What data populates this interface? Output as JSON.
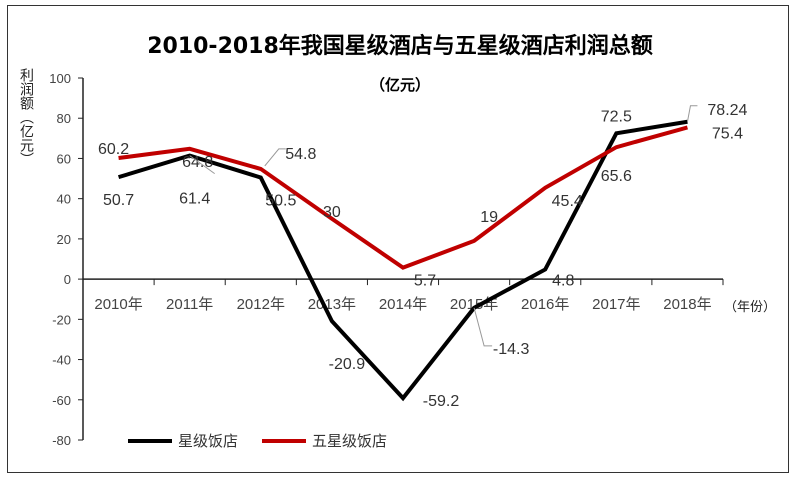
{
  "chart_data": {
    "type": "line",
    "title": "2010-2018年我国星级酒店与五星级酒店利润总额",
    "subtitle": "（亿元）",
    "ylabel": "利润额（亿元）",
    "xlabel": "（年份）",
    "categories": [
      "2010年",
      "2011年",
      "2012年",
      "2013年",
      "2014年",
      "2015年",
      "2016年",
      "2017年",
      "2018年"
    ],
    "ylim": [
      -80,
      100
    ],
    "yticks": [
      100,
      80,
      60,
      40,
      20,
      0,
      -20,
      -40,
      -60,
      -80
    ],
    "grid": false,
    "legend_position": "bottom-left",
    "series": [
      {
        "name": "星级饭店",
        "color": "#000000",
        "values": [
          50.7,
          61.4,
          50.5,
          -20.9,
          -59.2,
          -14.3,
          4.8,
          72.5,
          78.24
        ],
        "labels": [
          "50.7",
          "61.4",
          "50.5",
          "-20.9",
          "-59.2",
          "-14.3",
          "4.8",
          "72.5",
          "78.24"
        ]
      },
      {
        "name": "五星级饭店",
        "color": "#C00000",
        "values": [
          60.2,
          64.8,
          54.8,
          30,
          5.7,
          19,
          45.4,
          65.6,
          75.4
        ],
        "labels": [
          "60.2",
          "64.8",
          "54.8",
          "30",
          "5.7",
          "19",
          "45.4",
          "65.6",
          "75.4"
        ]
      }
    ]
  }
}
